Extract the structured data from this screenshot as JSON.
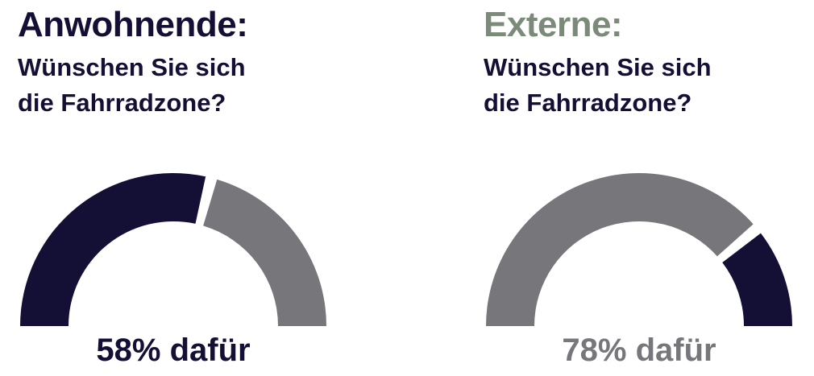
{
  "chart_data": [
    {
      "type": "gauge",
      "title": "Anwohnende:",
      "title_color": "#140f35",
      "subtitle": "Wünschen Sie sich die Fahrradzone?",
      "values": [
        58,
        42
      ],
      "value_labels": [
        "58% dafür",
        null
      ],
      "colors": [
        "#140f35",
        "#77767b"
      ]
    },
    {
      "type": "gauge",
      "title": "Externe:",
      "title_color": "#7b8a79",
      "subtitle": "Wünschen Sie sich die Fahrradzone?",
      "values": [
        78,
        22
      ],
      "value_labels": [
        "78% dafür",
        null
      ],
      "colors": [
        "#77767b",
        "#140f35"
      ]
    }
  ]
}
